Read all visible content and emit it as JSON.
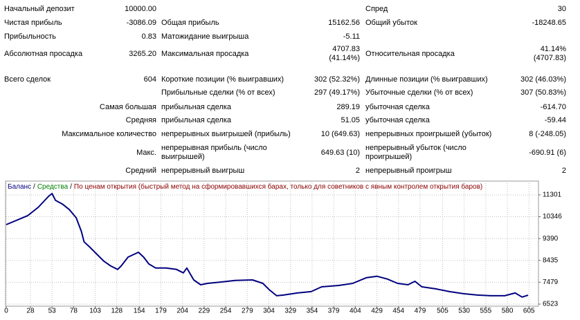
{
  "table": {
    "rows": [
      [
        "Начальный депозит",
        "10000.00",
        null,
        null,
        "Спред",
        "30"
      ],
      [
        "Чистая прибыль",
        "-3086.09",
        "Общая прибыль",
        "15162.56",
        "Общий убыток",
        "-18248.65"
      ],
      [
        "Прибыльность",
        "0.83",
        "Матожидание выигрыша",
        "-5.11",
        null,
        null
      ],
      [
        "Абсолютная просадка",
        "3265.20",
        "Максимальная просадка",
        "4707.83\n(41.14%)",
        "Относительная просадка",
        "41.14%\n(4707.83)"
      ],
      [
        "Всего сделок",
        "604",
        "Короткие позиции (% выигравших)",
        "302 (52.32%)",
        "Длинные позиции (% выигравших)",
        "302 (46.03%)"
      ],
      [
        null,
        null,
        "Прибыльные сделки (% от всех)",
        "297 (49.17%)",
        "Убыточные сделки (% от всех)",
        "307 (50.83%)"
      ],
      [
        "Самая большая",
        null,
        "прибыльная сделка",
        "289.19",
        "убыточная сделка",
        "-614.70"
      ],
      [
        "Средняя",
        null,
        "прибыльная сделка",
        "51.05",
        "убыточная сделка",
        "-59.44"
      ],
      [
        "Максимальное количество",
        null,
        "непрерывных выигрышей (прибыль)",
        "10 (649.63)",
        "непрерывных проигрышей (убыток)",
        "8 (-248.05)"
      ],
      [
        "Макс.",
        null,
        "непрерывная прибыль (число\nвыигрышей)",
        "649.63 (10)",
        "непрерывный убыток (число\nпроигрышей)",
        "-690.91 (6)"
      ],
      [
        "Средний",
        null,
        "непрерывный выигрыш",
        "2",
        "непрерывный проигрыш",
        "2"
      ]
    ]
  },
  "chart_data": {
    "type": "line",
    "x": [
      0,
      25,
      37,
      49,
      53,
      57,
      65,
      73,
      81,
      87,
      90,
      97,
      105,
      113,
      121,
      129,
      133,
      141,
      153,
      159,
      165,
      173,
      185,
      197,
      205,
      209,
      217,
      225,
      233,
      249,
      265,
      285,
      297,
      305,
      313,
      321,
      337,
      353,
      365,
      385,
      401,
      417,
      429,
      441,
      453,
      465,
      473,
      481,
      497,
      513,
      529,
      545,
      561,
      577,
      589,
      597,
      604
    ],
    "series": [
      {
        "name": "Баланс",
        "color": "#000080",
        "values": [
          10000,
          10395,
          10757,
          11240,
          11360,
          11060,
          10900,
          10660,
          10300,
          9700,
          9250,
          9006,
          8700,
          8400,
          8190,
          8040,
          8190,
          8580,
          8790,
          8580,
          8280,
          8100,
          8100,
          8040,
          7890,
          8100,
          7580,
          7370,
          7430,
          7490,
          7560,
          7580,
          7430,
          7130,
          6890,
          6920,
          7010,
          7070,
          7280,
          7340,
          7430,
          7680,
          7740,
          7620,
          7430,
          7370,
          7520,
          7280,
          7190,
          7070,
          6980,
          6920,
          6890,
          6890,
          7010,
          6830,
          6914
        ]
      }
    ],
    "legend_items": [
      {
        "text": "/",
        "color": "#000000"
      },
      {
        "text": "Средства",
        "color": "#008000"
      },
      {
        "text": "/",
        "color": "#000000"
      },
      {
        "text": "По ценам открытия (быстрый метод на сформировавшихся барах, только для советников с явным контролем открытия баров)",
        "color": "#8b0000"
      }
    ],
    "xlim": [
      0,
      616
    ],
    "ylim": [
      6432,
      11905
    ],
    "xticks": [
      0,
      28,
      53,
      78,
      103,
      128,
      154,
      179,
      204,
      229,
      254,
      279,
      304,
      329,
      354,
      379,
      404,
      429,
      454,
      479,
      505,
      530,
      555,
      580,
      605
    ],
    "yticks": [
      6523,
      7479,
      8435,
      9390,
      10346,
      11301
    ],
    "grid": true
  }
}
